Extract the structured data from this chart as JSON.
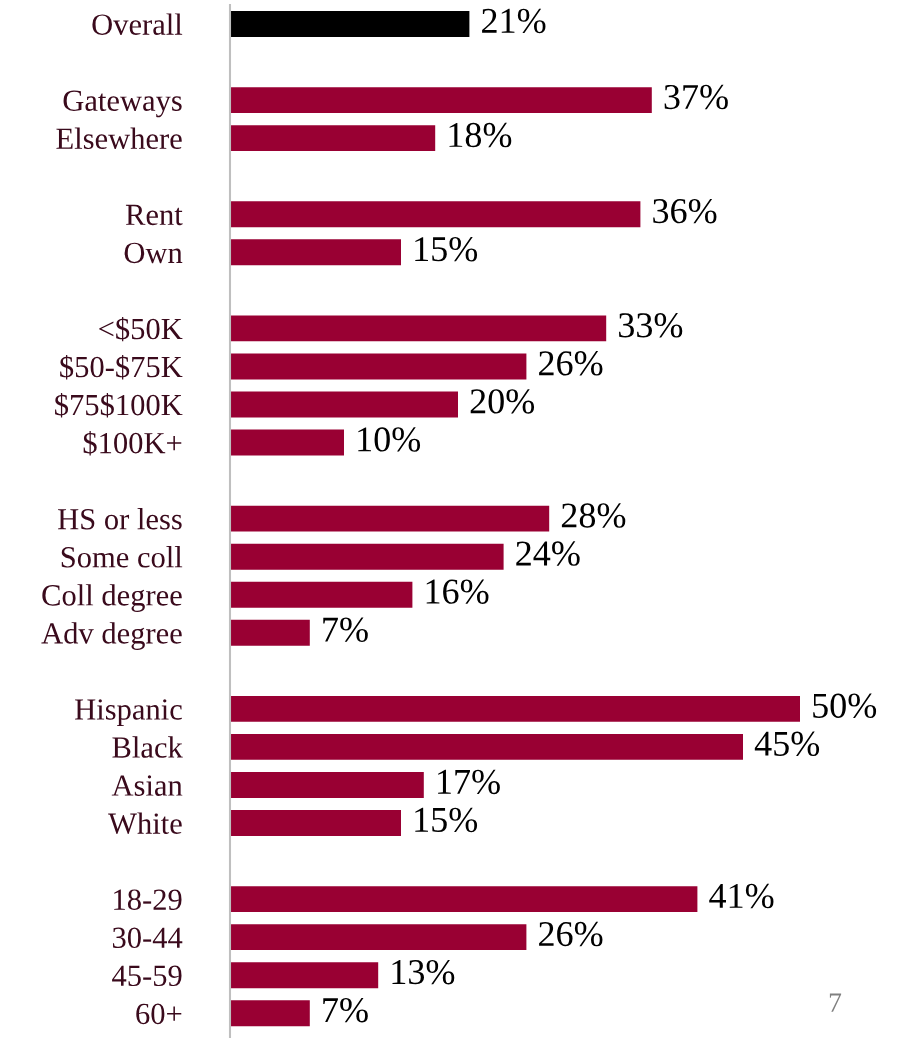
{
  "chart_data": {
    "type": "bar",
    "orientation": "horizontal",
    "value_labels": [
      "21%",
      null,
      "37%",
      "18%",
      null,
      "36%",
      "15%",
      null,
      "33%",
      "26%",
      "20%",
      "10%",
      null,
      "28%",
      "24%",
      "16%",
      "7%",
      null,
      "50%",
      "45%",
      "17%",
      "15%",
      null,
      "41%",
      "26%",
      "13%",
      "7%"
    ],
    "categories": [
      "Overall",
      null,
      "Gateways",
      "Elsewhere",
      null,
      "Rent",
      "Own",
      null,
      "<$50K",
      "$50-$75K",
      "$75$100K",
      "$100K+",
      null,
      "HS or less",
      "Some coll",
      "Coll degree",
      "Adv degree",
      null,
      "Hispanic",
      "Black",
      "Asian",
      "White",
      null,
      "18-29",
      "30-44",
      "45-59",
      "60+"
    ],
    "values": [
      21,
      null,
      37,
      18,
      null,
      36,
      15,
      null,
      33,
      26,
      20,
      10,
      null,
      28,
      24,
      16,
      7,
      null,
      50,
      45,
      17,
      15,
      null,
      41,
      26,
      13,
      7
    ],
    "colors": [
      "#000000",
      null,
      "#990033",
      "#990033",
      null,
      "#990033",
      "#990033",
      null,
      "#990033",
      "#990033",
      "#990033",
      "#990033",
      null,
      "#990033",
      "#990033",
      "#990033",
      "#990033",
      null,
      "#990033",
      "#990033",
      "#990033",
      "#990033",
      null,
      "#990033",
      "#990033",
      "#990033",
      "#990033"
    ],
    "annotations": [
      "7"
    ]
  }
}
